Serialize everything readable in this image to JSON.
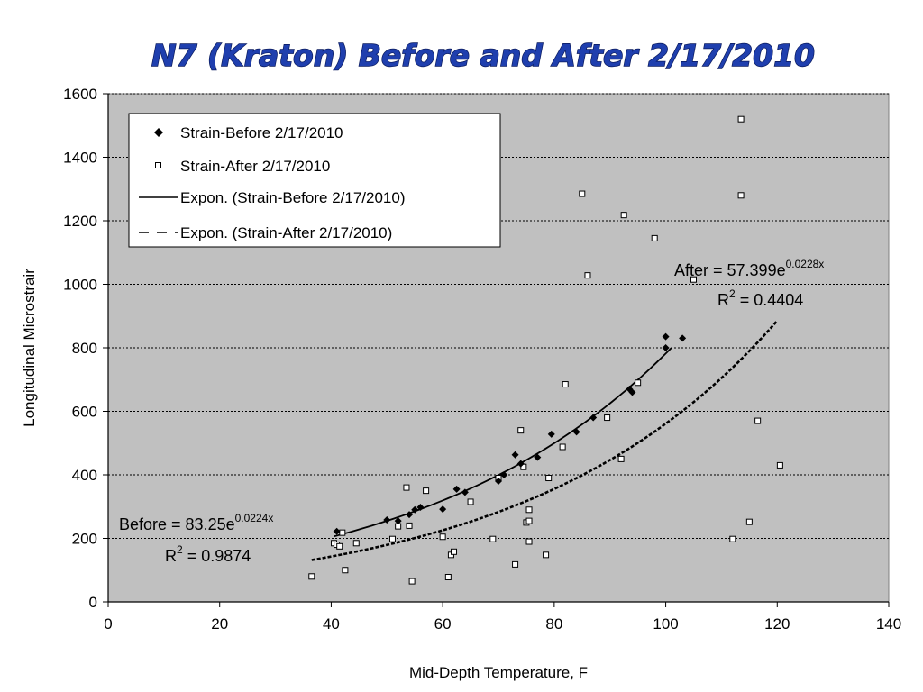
{
  "chart_data": {
    "type": "scatter",
    "title": "N7 (Kraton) Before and After 2/17/2010",
    "xlabel": "Mid-Depth Temperature, F",
    "ylabel": "Longitudinal Microstrair",
    "xlim": [
      0,
      140
    ],
    "ylim": [
      0,
      1600
    ],
    "x_ticks": [
      0,
      20,
      40,
      60,
      80,
      100,
      120,
      140
    ],
    "y_ticks": [
      0,
      200,
      400,
      600,
      800,
      1000,
      1200,
      1400,
      1600
    ],
    "grid": "horizontal dotted",
    "plot_background": "#c0c0c0",
    "legend_position": "top-left",
    "series": [
      {
        "name": "Strain-Before 2/17/2010",
        "marker": "diamond-filled",
        "x": [
          41,
          52,
          54,
          50,
          55,
          56,
          60,
          62.5,
          64,
          70,
          71,
          73,
          74,
          77,
          79.5,
          84,
          87,
          93.5,
          94,
          100,
          100,
          103
        ],
        "y": [
          222,
          255,
          275,
          258,
          290,
          298,
          292,
          355,
          345,
          380,
          400,
          463,
          435,
          455,
          528,
          535,
          580,
          670,
          660,
          835,
          800,
          830
        ]
      },
      {
        "name": "Strain-After 2/17/2010",
        "marker": "square-open",
        "x": [
          36.5,
          40.5,
          41,
          41.5,
          42,
          42.5,
          44.5,
          51,
          52,
          53.5,
          54,
          54.5,
          57,
          60,
          61,
          61.5,
          62,
          65,
          69,
          70,
          73,
          74,
          74.5,
          75,
          75.5,
          75.5,
          75.5,
          78.5,
          79,
          81.5,
          82,
          85,
          86,
          89.5,
          92,
          92.5,
          95,
          98,
          105,
          112,
          113.5,
          113.5,
          115,
          116.5,
          120.5
        ],
        "y": [
          80,
          185,
          180,
          175,
          218,
          100,
          185,
          198,
          238,
          360,
          240,
          65,
          350,
          205,
          78,
          148,
          158,
          315,
          198,
          390,
          118,
          540,
          425,
          250,
          190,
          290,
          255,
          148,
          390,
          488,
          685,
          1285,
          1028,
          580,
          450,
          1218,
          690,
          1145,
          1015,
          198,
          1280,
          1520,
          252,
          570,
          430
        ]
      }
    ],
    "trendlines": [
      {
        "name": "Expon. (Strain-Before 2/17/2010)",
        "style": "solid",
        "a": 83.25,
        "b": 0.0224,
        "x_range": [
          40.5,
          101
        ],
        "equation": "Before = 83.25e",
        "exponent": "0.0224x",
        "r2_prefix": "R",
        "r2_power": "2",
        "r2_value": " = 0.9874"
      },
      {
        "name": "Expon. (Strain-After 2/17/2010)",
        "style": "dashed",
        "a": 57.399,
        "b": 0.0228,
        "x_range": [
          36.5,
          120
        ],
        "equation": "After = 57.399e",
        "exponent": "0.0228x",
        "r2_prefix": "R",
        "r2_power": "2",
        "r2_value": " = 0.4404"
      }
    ]
  }
}
